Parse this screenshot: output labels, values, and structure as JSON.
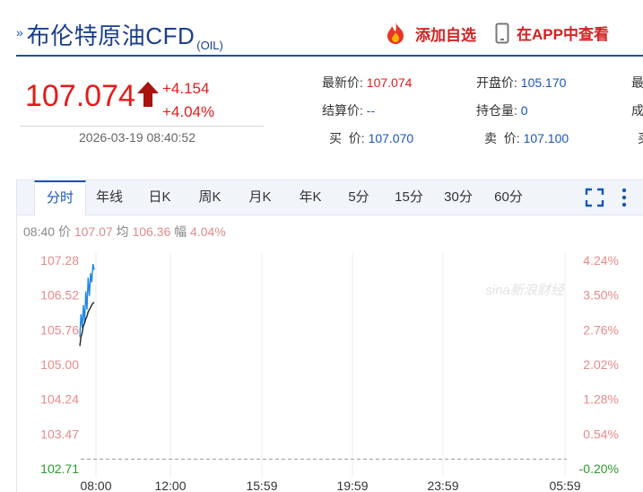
{
  "header": {
    "title": "布伦特原油CFD",
    "code": "(OIL)",
    "add_watchlist": "添加自选",
    "view_in_app": "在APP中查看"
  },
  "quote": {
    "price": "107.074",
    "change": "+4.154",
    "change_pct": "+4.04%",
    "timestamp": "2026-03-19 08:40:52",
    "latest_label": "最新价:",
    "latest_value": "107.074",
    "settle_label": "结算价:",
    "settle_value": "--",
    "bid_label": "买  价:",
    "bid_value": "107.070",
    "open_label": "开盘价:",
    "open_value": "105.170",
    "oi_label": "持仓量:",
    "oi_value": "0",
    "ask_label": "卖  价:",
    "ask_value": "107.100",
    "cut1": "最",
    "cut2": "成",
    "cut3": "买"
  },
  "tabs": [
    "分时",
    "年线",
    "日K",
    "周K",
    "月K",
    "年K",
    "5分",
    "15分",
    "30分",
    "60分"
  ],
  "active_tab": "分时",
  "info_bar": {
    "time": "08:40",
    "price_label": "价",
    "price": "107.07",
    "avg_label": "均",
    "avg": "106.36",
    "amp_label": "幅",
    "amp": "4.04%"
  },
  "colors": {
    "up": "#e31b1b",
    "accent": "#1a56b8",
    "price_line": "#1e88e5",
    "avg_line": "#222222"
  },
  "chart_data": {
    "type": "line",
    "y_ticks_left": [
      "107.28",
      "106.52",
      "105.76",
      "105.00",
      "104.24",
      "103.47",
      "102.71"
    ],
    "y_ticks_right": [
      "4.24%",
      "3.50%",
      "2.76%",
      "2.02%",
      "1.28%",
      "0.54%",
      "-0.20%"
    ],
    "x_ticks": [
      "08:00",
      "12:00",
      "15:59",
      "19:59",
      "23:59",
      "05:59"
    ],
    "ylim": [
      102.71,
      107.28
    ],
    "prev_close": 102.92,
    "watermark": "sina新浪财经",
    "series": [
      {
        "values": [
          105.6,
          106.1,
          105.8,
          106.3,
          105.9,
          106.6,
          106.2,
          106.9,
          106.5,
          107.0,
          106.8,
          107.2,
          107.07
        ]
      },
      {
        "values": [
          105.4,
          105.6,
          105.7,
          105.85,
          105.9,
          106.0,
          106.05,
          106.15,
          106.2,
          106.25,
          106.3,
          106.34,
          106.36
        ]
      }
    ]
  }
}
